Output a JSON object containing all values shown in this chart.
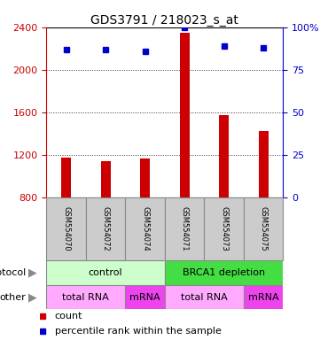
{
  "title": "GDS3791 / 218023_s_at",
  "samples": [
    "GSM554070",
    "GSM554072",
    "GSM554074",
    "GSM554071",
    "GSM554073",
    "GSM554075"
  ],
  "counts": [
    1175,
    1140,
    1165,
    2350,
    1575,
    1430
  ],
  "percentiles": [
    87,
    87,
    86,
    100,
    89,
    88
  ],
  "ylim_left": [
    800,
    2400
  ],
  "ylim_right": [
    0,
    100
  ],
  "yticks_left": [
    800,
    1200,
    1600,
    2000,
    2400
  ],
  "yticks_right": [
    0,
    25,
    50,
    75,
    100
  ],
  "bar_color": "#cc0000",
  "dot_color": "#0000cc",
  "protocol_labels": [
    {
      "text": "control",
      "span": [
        0,
        3
      ],
      "color": "#ccffcc"
    },
    {
      "text": "BRCA1 depletion",
      "span": [
        3,
        6
      ],
      "color": "#44dd44"
    }
  ],
  "other_labels": [
    {
      "text": "total RNA",
      "span": [
        0,
        2
      ],
      "color": "#ffaaff"
    },
    {
      "text": "mRNA",
      "span": [
        2,
        3
      ],
      "color": "#ee44ee"
    },
    {
      "text": "total RNA",
      "span": [
        3,
        5
      ],
      "color": "#ffaaff"
    },
    {
      "text": "mRNA",
      "span": [
        5,
        6
      ],
      "color": "#ee44ee"
    }
  ],
  "legend_count_color": "#cc0000",
  "legend_dot_color": "#0000cc",
  "left_axis_color": "#cc0000",
  "right_axis_color": "#0000cc",
  "bar_width": 0.25,
  "sample_box_color": "#cccccc",
  "sample_box_edge": "#888888"
}
